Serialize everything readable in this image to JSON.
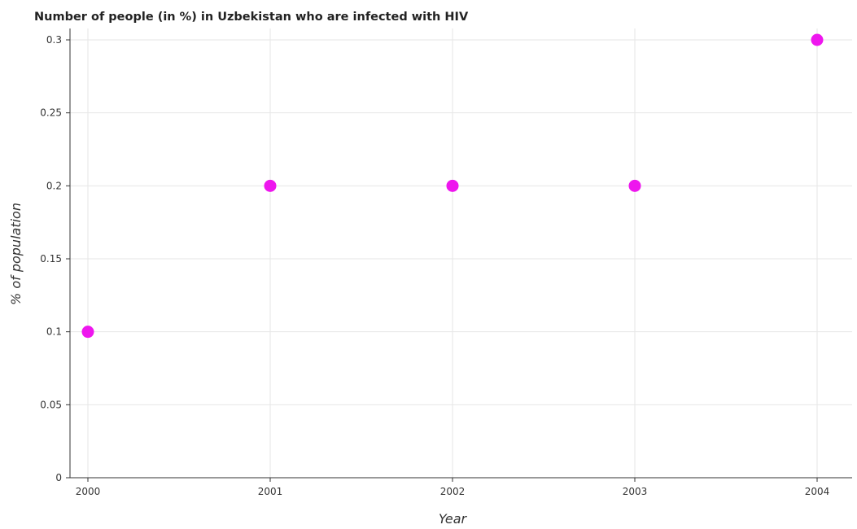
{
  "chart_data": {
    "type": "scatter",
    "title": "Number of people (in %) in Uzbekistan who are infected with HIV",
    "xlabel": "Year",
    "ylabel": "% of population",
    "categories": [
      "2000",
      "2001",
      "2002",
      "2003",
      "2004"
    ],
    "values": [
      0.1,
      0.2,
      0.2,
      0.2,
      0.3
    ],
    "ylim": [
      0,
      0.3
    ],
    "yticks": [
      "0",
      "0.05",
      "0.1",
      "0.15",
      "0.2",
      "0.25",
      "0.3"
    ],
    "ytick_values": [
      0,
      0.05,
      0.1,
      0.15,
      0.2,
      0.25,
      0.3
    ],
    "grid": true,
    "marker_color": "#ee16ee"
  }
}
